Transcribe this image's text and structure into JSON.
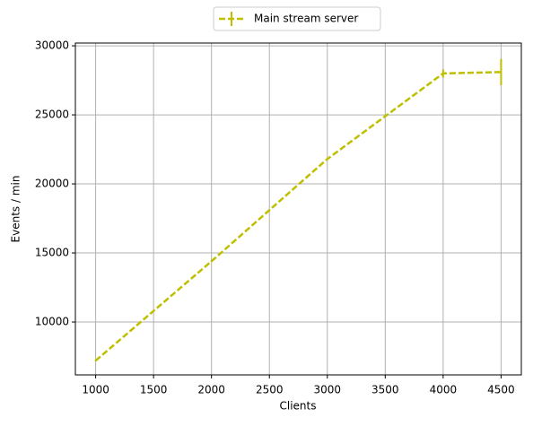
{
  "chart_data": {
    "type": "line",
    "x_label": "Clients",
    "y_label": "Events / min",
    "x": [
      1000,
      1500,
      2000,
      2500,
      3000,
      3500,
      4000,
      4500
    ],
    "series": [
      {
        "name": "Main stream server",
        "color": "#bfbf00",
        "values": [
          7200,
          10800,
          14400,
          18100,
          21800,
          24900,
          28000,
          28100
        ],
        "errors": [
          50,
          50,
          50,
          50,
          50,
          50,
          300,
          950
        ]
      }
    ],
    "xlim": [
      825,
      4675
    ],
    "xticks": [
      1000,
      1500,
      2000,
      2500,
      3000,
      3500,
      4000,
      4500
    ],
    "ylim": [
      6170,
      30200
    ],
    "yticks": [
      10000,
      15000,
      20000,
      25000,
      30000
    ],
    "grid": true,
    "legend": "upper center outside",
    "dashed": true
  }
}
